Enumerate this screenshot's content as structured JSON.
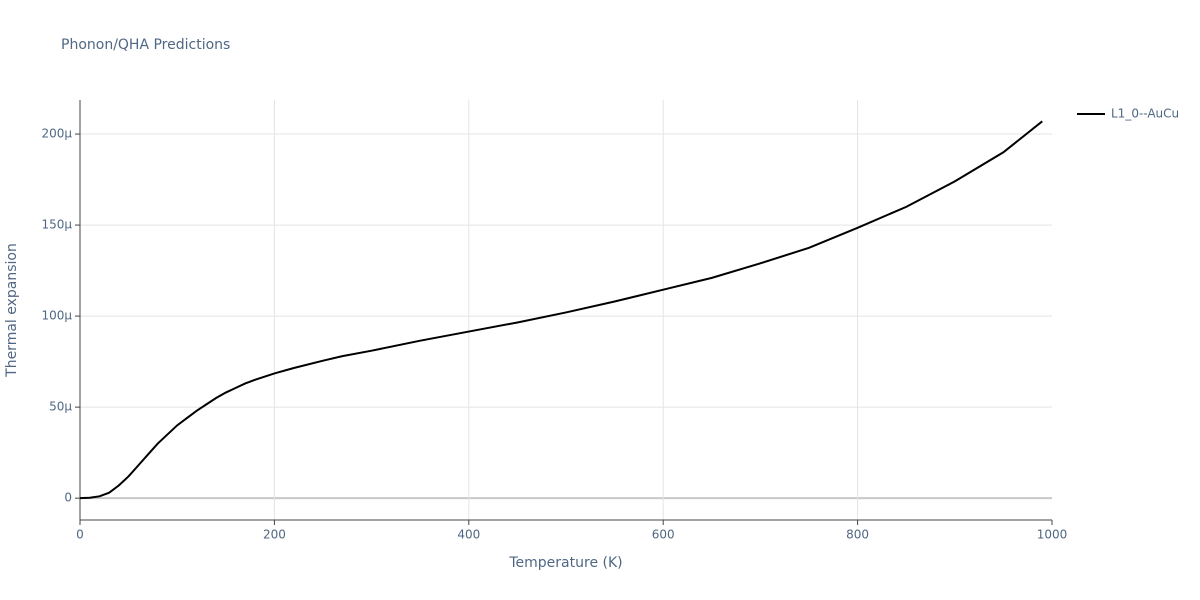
{
  "chart_data": {
    "type": "line",
    "title": "Phonon/QHA Predictions",
    "x_label": "Temperature (K)",
    "y_label": "Thermal expansion",
    "x": [
      0,
      10,
      20,
      30,
      40,
      50,
      60,
      70,
      80,
      90,
      100,
      110,
      120,
      130,
      140,
      150,
      160,
      170,
      180,
      200,
      220,
      250,
      270,
      300,
      350,
      400,
      450,
      500,
      550,
      600,
      650,
      700,
      750,
      800,
      850,
      900,
      950,
      990
    ],
    "series": [
      {
        "name": "L1_0--AuCu",
        "color": "#000000",
        "values": [
          0,
          2e-07,
          1e-06,
          3e-06,
          7e-06,
          1.2e-05,
          1.8e-05,
          2.4e-05,
          3e-05,
          3.5e-05,
          4e-05,
          4.4e-05,
          4.8e-05,
          5.15e-05,
          5.5e-05,
          5.8e-05,
          6.05e-05,
          6.3e-05,
          6.5e-05,
          6.85e-05,
          7.15e-05,
          7.55e-05,
          7.8e-05,
          8.1e-05,
          8.65e-05,
          9.15e-05,
          9.65e-05,
          0.000102,
          0.000108,
          0.0001145,
          0.000121,
          0.000129,
          0.0001375,
          0.0001485,
          0.00016,
          0.000174,
          0.00019,
          0.000207
        ]
      }
    ],
    "xlim": [
      0,
      1000
    ],
    "xticks": [
      0,
      200,
      400,
      600,
      800,
      1000
    ],
    "ylim": [
      -1.2e-05,
      0.0002187
    ],
    "yticks": [
      0,
      {
        "value": 5e-05,
        "label": "50μ"
      },
      {
        "value": 0.0001,
        "label": "100μ"
      },
      {
        "value": 0.00015,
        "label": "150μ"
      },
      {
        "value": 0.0002,
        "label": "200μ"
      }
    ],
    "grid": true,
    "legend": "right"
  }
}
